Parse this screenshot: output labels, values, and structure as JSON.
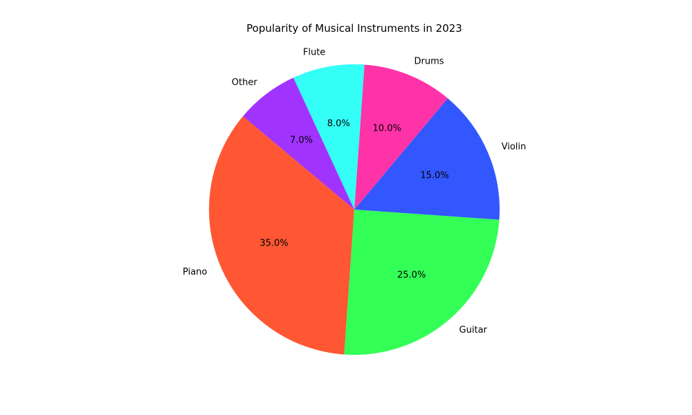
{
  "chart_data": {
    "type": "pie",
    "title": "Popularity of Musical Instruments in 2023",
    "categories": [
      "Piano",
      "Guitar",
      "Violin",
      "Drums",
      "Flute",
      "Other"
    ],
    "values": [
      35,
      25,
      15,
      10,
      8,
      7
    ],
    "percent_labels": [
      "35.0%",
      "25.0%",
      "15.0%",
      "10.0%",
      "8.0%",
      "7.0%"
    ],
    "colors": [
      "#ff5733",
      "#33ff57",
      "#3357ff",
      "#ff33a8",
      "#33fff6",
      "#a133ff"
    ],
    "start_angle_deg": 140,
    "direction": "counterclockwise",
    "legend": "none"
  }
}
